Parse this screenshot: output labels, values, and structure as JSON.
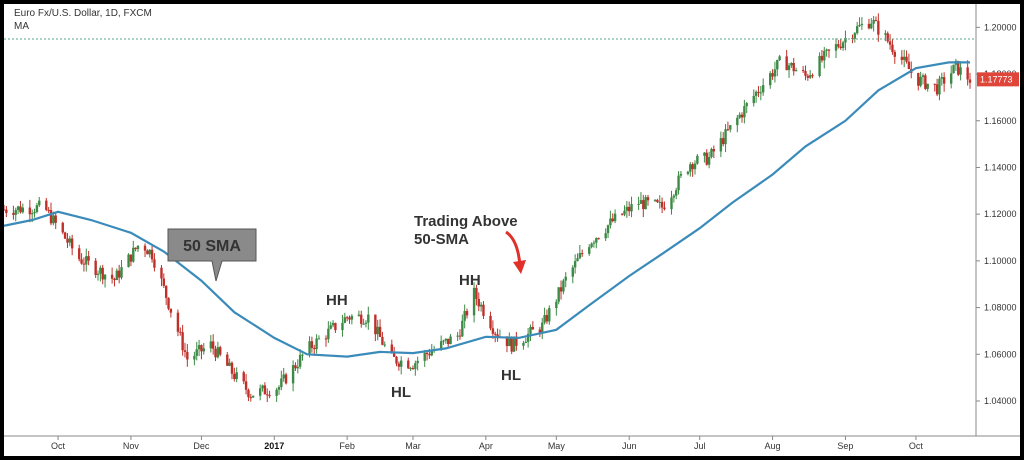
{
  "header": {
    "title": "Euro Fx/U.S. Dollar, 1D, FXCM",
    "indicator": "MA"
  },
  "price_tag": "1.17773",
  "colors": {
    "up": "#3c8a45",
    "down": "#c0302a",
    "ma": "#3b8bba",
    "price_tag": "#e0453a",
    "dotted": "#5aa58a"
  },
  "annotations": {
    "sma_callout": "50 SMA",
    "trading_line1": "Trading Above",
    "trading_line2": "50-SMA",
    "hh1": "HH",
    "hh2": "HH",
    "hl1": "HL",
    "hl2": "HL"
  },
  "chart_data": {
    "type": "line",
    "title": "Euro Fx/U.S. Dollar, 1D, FXCM",
    "xlabel": "",
    "ylabel": "",
    "ylim": [
      1.025,
      1.21
    ],
    "grid": false,
    "x_tick_labels": [
      "Oct",
      "Nov",
      "Dec",
      "2017",
      "Feb",
      "Mar",
      "Apr",
      "May",
      "Jun",
      "Jul",
      "Aug",
      "Sep",
      "Oct"
    ],
    "y_tick_labels": [
      "1.20000",
      "1.18000",
      "1.16000",
      "1.14000",
      "1.12000",
      "1.10000",
      "1.08000",
      "1.06000",
      "1.04000"
    ],
    "y_ticks": [
      1.2,
      1.18,
      1.16,
      1.14,
      1.12,
      1.1,
      1.08,
      1.06,
      1.04
    ],
    "last_price": 1.17773,
    "reference_level": 1.195,
    "series": [
      {
        "name": "MA",
        "x": [
          "2016-09-08",
          "2016-09-20",
          "2016-10-01",
          "2016-10-15",
          "2016-11-01",
          "2016-11-15",
          "2016-12-01",
          "2016-12-15",
          "2017-01-01",
          "2017-01-15",
          "2017-02-01",
          "2017-02-15",
          "2017-03-01",
          "2017-03-15",
          "2017-04-01",
          "2017-04-15",
          "2017-05-01",
          "2017-05-15",
          "2017-06-01",
          "2017-06-15",
          "2017-07-01",
          "2017-07-15",
          "2017-08-01",
          "2017-08-15",
          "2017-09-01",
          "2017-09-15",
          "2017-10-01",
          "2017-10-15",
          "2017-10-24"
        ],
        "values": [
          1.115,
          1.1175,
          1.121,
          1.1175,
          1.112,
          1.104,
          1.0915,
          1.078,
          1.067,
          1.06,
          1.059,
          1.061,
          1.0605,
          1.0625,
          1.0675,
          1.067,
          1.0705,
          1.081,
          1.0935,
          1.103,
          1.114,
          1.125,
          1.137,
          1.149,
          1.16,
          1.173,
          1.1825,
          1.185,
          1.185
        ]
      },
      {
        "name": "Price",
        "x": [
          "2016-09-08",
          "2016-09-25",
          "2016-10-10",
          "2016-10-25",
          "2016-11-05",
          "2016-11-10",
          "2016-11-25",
          "2016-12-05",
          "2016-12-15",
          "2016-12-22",
          "2017-01-03",
          "2017-01-15",
          "2017-02-01",
          "2017-02-10",
          "2017-02-20",
          "2017-03-01",
          "2017-03-08",
          "2017-03-20",
          "2017-03-27",
          "2017-04-05",
          "2017-04-12",
          "2017-04-20",
          "2017-04-25",
          "2017-05-05",
          "2017-05-15",
          "2017-05-25",
          "2017-06-05",
          "2017-06-15",
          "2017-06-27",
          "2017-07-05",
          "2017-07-15",
          "2017-07-25",
          "2017-08-05",
          "2017-08-15",
          "2017-08-25",
          "2017-09-05",
          "2017-09-12",
          "2017-09-20",
          "2017-10-01",
          "2017-10-10",
          "2017-10-18",
          "2017-10-24"
        ],
        "values": [
          1.122,
          1.123,
          1.101,
          1.092,
          1.108,
          1.103,
          1.058,
          1.064,
          1.051,
          1.043,
          1.046,
          1.062,
          1.076,
          1.076,
          1.058,
          1.056,
          1.061,
          1.068,
          1.086,
          1.07,
          1.064,
          1.069,
          1.072,
          1.092,
          1.108,
          1.117,
          1.125,
          1.123,
          1.142,
          1.144,
          1.158,
          1.172,
          1.186,
          1.179,
          1.189,
          1.199,
          1.203,
          1.193,
          1.178,
          1.174,
          1.183,
          1.1777
        ]
      }
    ]
  }
}
